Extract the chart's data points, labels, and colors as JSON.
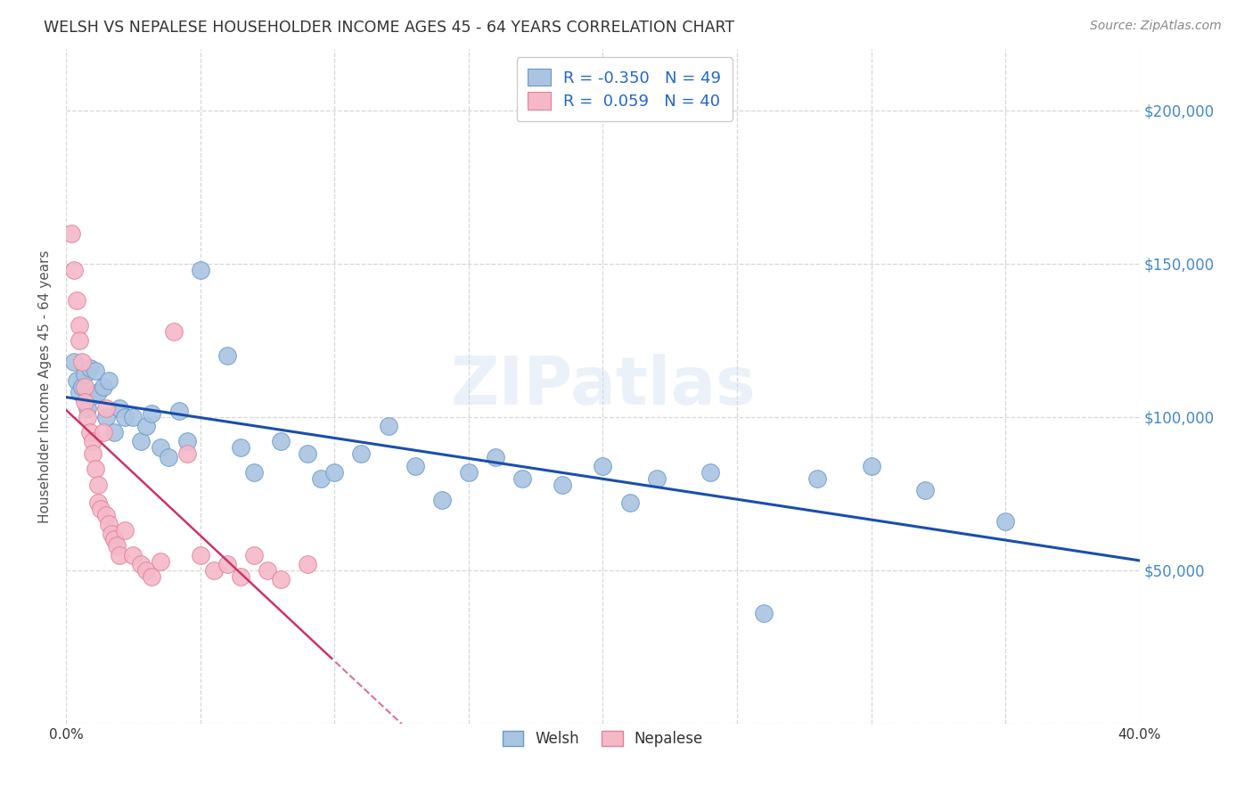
{
  "title": "WELSH VS NEPALESE HOUSEHOLDER INCOME AGES 45 - 64 YEARS CORRELATION CHART",
  "source": "Source: ZipAtlas.com",
  "ylabel": "Householder Income Ages 45 - 64 years",
  "xlim": [
    0,
    0.4
  ],
  "ylim": [
    0,
    220000
  ],
  "xticks": [
    0.0,
    0.05,
    0.1,
    0.15,
    0.2,
    0.25,
    0.3,
    0.35,
    0.4
  ],
  "xtick_labels": [
    "0.0%",
    "",
    "",
    "",
    "",
    "",
    "",
    "",
    "40.0%"
  ],
  "ytick_positions": [
    0,
    50000,
    100000,
    150000,
    200000
  ],
  "ytick_labels": [
    "",
    "$50,000",
    "$100,000",
    "$150,000",
    "$200,000"
  ],
  "welsh_color": "#aac4e2",
  "welsh_edge": "#6699cc",
  "nepalese_color": "#f5b8c8",
  "nepalese_edge": "#e08098",
  "welsh_R": -0.35,
  "welsh_N": 49,
  "nepalese_R": 0.059,
  "nepalese_N": 40,
  "welsh_line_color": "#1a4faa",
  "nepalese_line_color": "#cc3366",
  "background_color": "#ffffff",
  "grid_color": "#cccccc",
  "title_color": "#333333",
  "axis_label_color": "#555555",
  "right_ytick_color": "#4488cc",
  "watermark": "ZIPatlas",
  "legend_R_color": "#2266cc",
  "legend_N_color": "#2266cc",
  "welsh_x": [
    0.003,
    0.004,
    0.005,
    0.006,
    0.007,
    0.008,
    0.009,
    0.01,
    0.011,
    0.012,
    0.014,
    0.015,
    0.016,
    0.018,
    0.02,
    0.022,
    0.025,
    0.028,
    0.03,
    0.032,
    0.035,
    0.038,
    0.042,
    0.045,
    0.05,
    0.06,
    0.065,
    0.07,
    0.08,
    0.09,
    0.095,
    0.1,
    0.11,
    0.12,
    0.13,
    0.14,
    0.15,
    0.16,
    0.17,
    0.185,
    0.2,
    0.21,
    0.22,
    0.24,
    0.26,
    0.28,
    0.3,
    0.32,
    0.35
  ],
  "welsh_y": [
    118000,
    112000,
    108000,
    110000,
    114000,
    103000,
    116000,
    107000,
    115000,
    108000,
    110000,
    100000,
    112000,
    95000,
    103000,
    100000,
    100000,
    92000,
    97000,
    101000,
    90000,
    87000,
    102000,
    92000,
    148000,
    120000,
    90000,
    82000,
    92000,
    88000,
    80000,
    82000,
    88000,
    97000,
    84000,
    73000,
    82000,
    87000,
    80000,
    78000,
    84000,
    72000,
    80000,
    82000,
    36000,
    80000,
    84000,
    76000,
    66000
  ],
  "nepalese_x": [
    0.002,
    0.003,
    0.004,
    0.005,
    0.005,
    0.006,
    0.007,
    0.007,
    0.008,
    0.009,
    0.01,
    0.01,
    0.011,
    0.012,
    0.012,
    0.013,
    0.014,
    0.015,
    0.015,
    0.016,
    0.017,
    0.018,
    0.019,
    0.02,
    0.022,
    0.025,
    0.028,
    0.03,
    0.032,
    0.035,
    0.04,
    0.045,
    0.05,
    0.055,
    0.06,
    0.065,
    0.07,
    0.075,
    0.08,
    0.09
  ],
  "nepalese_y": [
    160000,
    148000,
    138000,
    130000,
    125000,
    118000,
    110000,
    105000,
    100000,
    95000,
    92000,
    88000,
    83000,
    78000,
    72000,
    70000,
    95000,
    103000,
    68000,
    65000,
    62000,
    60000,
    58000,
    55000,
    63000,
    55000,
    52000,
    50000,
    48000,
    53000,
    128000,
    88000,
    55000,
    50000,
    52000,
    48000,
    55000,
    50000,
    47000,
    52000
  ]
}
